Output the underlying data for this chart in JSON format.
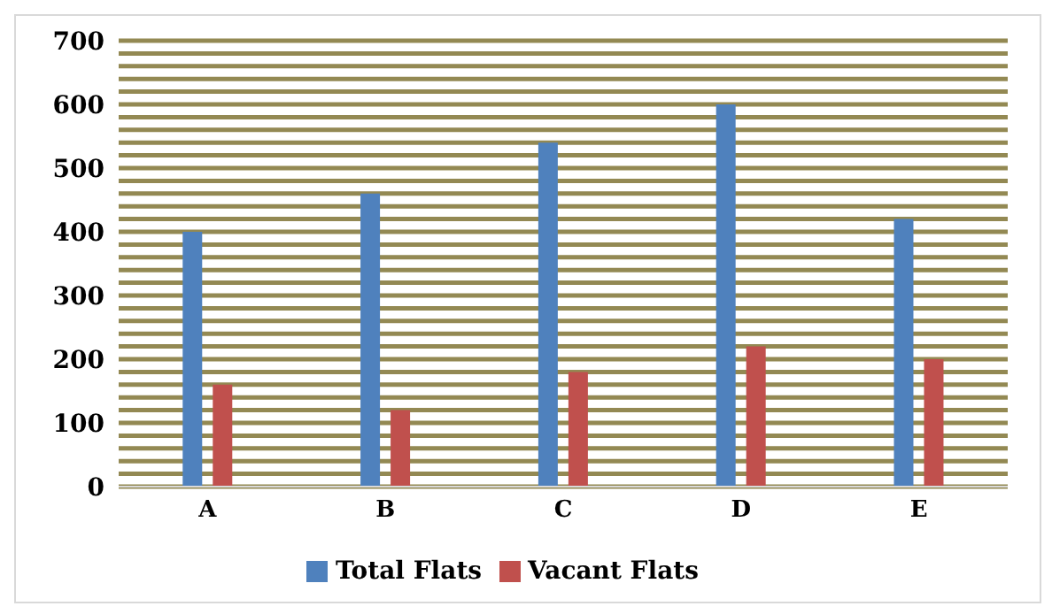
{
  "chart_data": {
    "type": "bar",
    "categories": [
      "A",
      "B",
      "C",
      "D",
      "E"
    ],
    "series": [
      {
        "name": "Total Flats",
        "color": "#4f81bd",
        "values": [
          400,
          460,
          540,
          600,
          420
        ]
      },
      {
        "name": "Vacant Flats",
        "color": "#c0504d",
        "values": [
          160,
          120,
          180,
          220,
          200
        ]
      }
    ],
    "ylim": [
      0,
      700
    ],
    "yticks": [
      0,
      {
        "value": 20,
        "label": null
      },
      {
        "value": 40,
        "label": null
      },
      {
        "value": 60,
        "label": null
      },
      {
        "value": 80,
        "label": null
      },
      100,
      {
        "value": 120,
        "label": null
      },
      {
        "value": 140,
        "label": null
      },
      {
        "value": 160,
        "label": null
      },
      {
        "value": 180,
        "label": null
      },
      200,
      {
        "value": 220,
        "label": null
      },
      {
        "value": 240,
        "label": null
      },
      {
        "value": 260,
        "label": null
      },
      {
        "value": 280,
        "label": null
      },
      300,
      {
        "value": 320,
        "label": null
      },
      {
        "value": 340,
        "label": null
      },
      {
        "value": 360,
        "label": null
      },
      {
        "value": 380,
        "label": null
      },
      400,
      {
        "value": 420,
        "label": null
      },
      {
        "value": 440,
        "label": null
      },
      {
        "value": 460,
        "label": null
      },
      {
        "value": 480,
        "label": null
      },
      500,
      {
        "value": 520,
        "label": null
      },
      {
        "value": 540,
        "label": null
      },
      {
        "value": 560,
        "label": null
      },
      {
        "value": 580,
        "label": null
      },
      600,
      {
        "value": 620,
        "label": null
      },
      {
        "value": 640,
        "label": null
      },
      {
        "value": 660,
        "label": null
      },
      {
        "value": 680,
        "label": null
      },
      700
    ],
    "grid": "y",
    "legend": "bottom"
  }
}
